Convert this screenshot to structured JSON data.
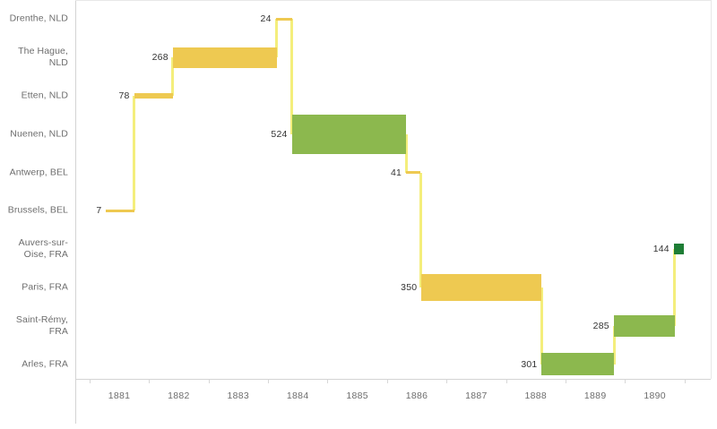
{
  "chart_data": {
    "type": "gantt",
    "x_axis": {
      "tick_labels": [
        "1881",
        "1882",
        "1883",
        "1884",
        "1885",
        "1886",
        "1887",
        "1888",
        "1889",
        "1890"
      ],
      "range": [
        1880.27,
        1890.94
      ],
      "grid": "off"
    },
    "y_categories": [
      "Drenthe, NLD",
      "The Hague, NLD",
      "Etten, NLD",
      "Nuenen, NLD",
      "Antwerp, BEL",
      "Brussels, BEL",
      "Auvers-sur-Oise, FRA",
      "Paris, FRA",
      "Saint-Rémy, FRA",
      "Arles, FRA"
    ],
    "series": [
      {
        "location": "Brussels, BEL",
        "start": 1880.78,
        "end": 1881.25,
        "works": 7,
        "color": "yellow"
      },
      {
        "location": "Etten, NLD",
        "start": 1881.25,
        "end": 1881.9,
        "works": 78,
        "color": "yellow"
      },
      {
        "location": "The Hague, NLD",
        "start": 1881.9,
        "end": 1883.65,
        "works": 268,
        "color": "yellow"
      },
      {
        "location": "Drenthe, NLD",
        "start": 1883.63,
        "end": 1883.9,
        "works": 24,
        "color": "yellow"
      },
      {
        "location": "Nuenen, NLD",
        "start": 1883.9,
        "end": 1885.82,
        "works": 524,
        "color": "green"
      },
      {
        "location": "Antwerp, BEL",
        "start": 1885.82,
        "end": 1886.06,
        "works": 41,
        "color": "yellow"
      },
      {
        "location": "Paris, FRA",
        "start": 1886.08,
        "end": 1888.09,
        "works": 350,
        "color": "yellow"
      },
      {
        "location": "Arles, FRA",
        "start": 1888.1,
        "end": 1889.32,
        "works": 301,
        "color": "green"
      },
      {
        "location": "Saint-Rémy, FRA",
        "start": 1889.31,
        "end": 1890.33,
        "works": 285,
        "color": "green"
      },
      {
        "location": "Auvers-sur-Oise, FRA",
        "start": 1890.32,
        "end": 1890.49,
        "works": 144,
        "color": "dark_green"
      }
    ],
    "palette": {
      "yellow": "#eec951",
      "green": "#8cb84e",
      "dark_green": "#1e7d35",
      "connector": "#f4ee7c",
      "axis_line": "#d4d4d4",
      "border_line": "#e8e8e8",
      "category_label": "#6d6d6d",
      "value_label": "#323232"
    }
  }
}
